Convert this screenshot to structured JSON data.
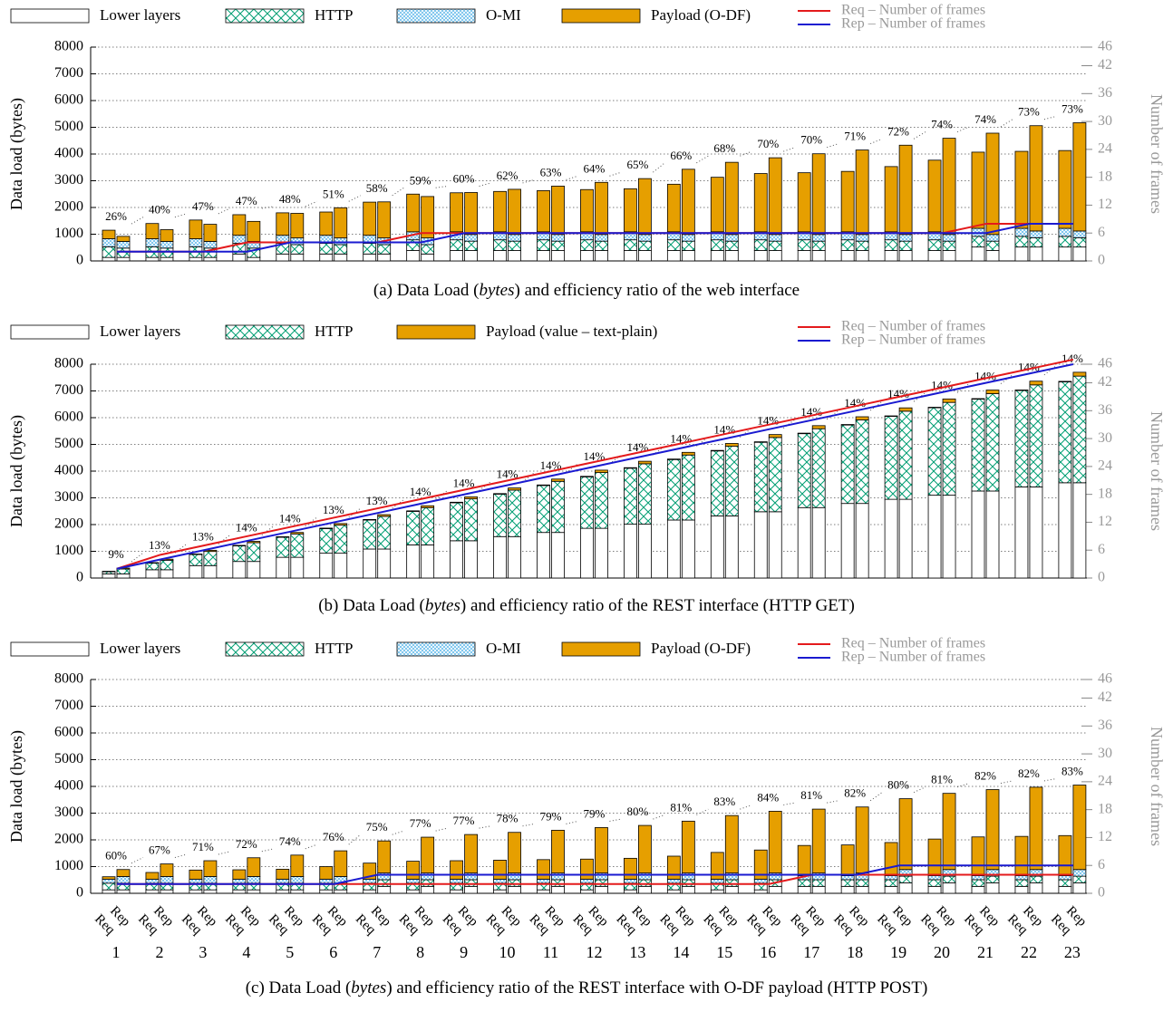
{
  "chart_data": [
    {
      "type": "bar",
      "stacked": true,
      "caption": [
        "(a) Data Load (",
        "bytes",
        ") and efficiency ratio of the web interface"
      ],
      "ylabel": "Data load (bytes)",
      "y2label": "Number of frames",
      "ylim": [
        0,
        8000
      ],
      "yticks": [
        0,
        1000,
        2000,
        3000,
        4000,
        5000,
        6000,
        7000,
        8000
      ],
      "y2lim": [
        0,
        46
      ],
      "y2ticks": [
        0,
        6,
        12,
        18,
        24,
        30,
        36,
        42,
        46
      ],
      "grid": true,
      "series": [
        {
          "name": "Lower layers",
          "color": "#ffffff",
          "pattern": "none",
          "req": [
            130,
            130,
            130,
            260,
            260,
            260,
            260,
            390,
            390,
            390,
            390,
            390,
            390,
            390,
            390,
            390,
            390,
            390,
            390,
            390,
            520,
            520,
            520
          ],
          "rep": [
            130,
            130,
            130,
            130,
            260,
            260,
            260,
            260,
            390,
            390,
            390,
            390,
            390,
            390,
            390,
            390,
            390,
            390,
            390,
            390,
            390,
            520,
            520
          ]
        },
        {
          "name": "HTTP",
          "color": "#009e73",
          "pattern": "crosshatch",
          "req": [
            400,
            400,
            400,
            400,
            400,
            400,
            400,
            400,
            400,
            400,
            400,
            400,
            400,
            400,
            400,
            400,
            400,
            400,
            400,
            400,
            400,
            400,
            400
          ],
          "rep": [
            350,
            350,
            350,
            350,
            350,
            350,
            350,
            350,
            350,
            350,
            350,
            350,
            350,
            350,
            350,
            350,
            350,
            350,
            350,
            350,
            350,
            350,
            350
          ]
        },
        {
          "name": "O-MI",
          "color": "#56b4e9",
          "pattern": "fine-crosshatch",
          "req": [
            300,
            300,
            300,
            300,
            300,
            300,
            300,
            300,
            300,
            300,
            300,
            300,
            300,
            300,
            300,
            300,
            300,
            300,
            300,
            300,
            300,
            300,
            300
          ],
          "rep": [
            250,
            250,
            250,
            250,
            250,
            250,
            250,
            250,
            250,
            250,
            250,
            250,
            250,
            250,
            250,
            250,
            250,
            250,
            250,
            250,
            250,
            250,
            250
          ]
        },
        {
          "name": "Payload (O-DF)",
          "color": "#e69f00",
          "pattern": "solid",
          "req": [
            320,
            570,
            700,
            770,
            840,
            870,
            1240,
            1410,
            1460,
            1510,
            1540,
            1580,
            1610,
            1780,
            2040,
            2180,
            2210,
            2260,
            2440,
            2680,
            2850,
            2880,
            2910
          ],
          "rep": [
            190,
            440,
            640,
            750,
            920,
            1130,
            1350,
            1550,
            1570,
            1690,
            1810,
            1950,
            2090,
            2440,
            2700,
            2870,
            3020,
            3160,
            3340,
            3600,
            3790,
            3940,
            4050
          ]
        }
      ],
      "lines": [
        {
          "name": "Req – Number of frames",
          "color": "#e41a1c",
          "axis": "y2",
          "values": [
            2,
            2,
            2,
            4,
            4,
            4,
            4,
            6,
            6,
            6,
            6,
            6,
            6,
            6,
            6,
            6,
            6,
            6,
            6,
            6,
            8,
            8,
            8
          ]
        },
        {
          "name": "Rep – Number of frames",
          "color": "#1a1ad0",
          "axis": "y2",
          "values": [
            2,
            2,
            2,
            2,
            4,
            4,
            4,
            4,
            6,
            6,
            6,
            6,
            6,
            6,
            6,
            6,
            6,
            6,
            6,
            6,
            6,
            8,
            8
          ]
        }
      ],
      "efficiency": {
        "values": [
          26,
          40,
          47,
          47,
          48,
          51,
          58,
          59,
          60,
          62,
          63,
          64,
          65,
          66,
          68,
          70,
          70,
          71,
          72,
          74,
          74,
          73,
          73
        ],
        "value_labels": [
          "26%",
          "40%",
          "47%",
          "47%",
          "48%",
          "51%",
          "58%",
          "59%",
          "60%",
          "62%",
          "63%",
          "64%",
          "65%",
          "66%",
          "68%",
          "70%",
          "70%",
          "71%",
          "72%",
          "74%",
          "74%",
          "73%",
          "73%"
        ]
      }
    },
    {
      "type": "bar",
      "stacked": true,
      "caption": [
        "(b) Data Load (",
        "bytes",
        ") and efficiency ratio of the REST interface (HTTP GET)"
      ],
      "ylabel": "Data load (bytes)",
      "y2label": "Number of frames",
      "ylim": [
        0,
        8000
      ],
      "yticks": [
        0,
        1000,
        2000,
        3000,
        4000,
        5000,
        6000,
        7000,
        8000
      ],
      "y2lim": [
        0,
        46
      ],
      "y2ticks": [
        0,
        6,
        12,
        18,
        24,
        30,
        36,
        42,
        46
      ],
      "grid": true,
      "series": [
        {
          "name": "Lower layers",
          "color": "#ffffff",
          "pattern": "none",
          "req": [
            155,
            310,
            465,
            620,
            775,
            930,
            1085,
            1240,
            1395,
            1550,
            1705,
            1860,
            2015,
            2170,
            2325,
            2480,
            2635,
            2790,
            2945,
            3100,
            3255,
            3410,
            3565
          ],
          "rep": [
            155,
            310,
            465,
            620,
            775,
            930,
            1085,
            1240,
            1395,
            1550,
            1705,
            1860,
            2015,
            2170,
            2325,
            2480,
            2635,
            2790,
            2945,
            3100,
            3255,
            3410,
            3565
          ]
        },
        {
          "name": "HTTP",
          "color": "#009e73",
          "pattern": "crosshatch",
          "req": [
            78,
            246,
            414,
            582,
            750,
            918,
            1086,
            1254,
            1422,
            1590,
            1758,
            1926,
            2094,
            2262,
            2430,
            2598,
            2766,
            2934,
            3102,
            3270,
            3438,
            3606,
            3774
          ],
          "rep": [
            183,
            356,
            529,
            702,
            875,
            1048,
            1221,
            1394,
            1567,
            1740,
            1913,
            2086,
            2259,
            2432,
            2605,
            2778,
            2951,
            3124,
            3297,
            3470,
            3643,
            3816,
            3989
          ]
        },
        {
          "name": "Payload (value – text-plain)",
          "color": "#e69f00",
          "pattern": "solid",
          "req": [
            20,
            20,
            20,
            20,
            20,
            20,
            20,
            20,
            20,
            20,
            20,
            20,
            20,
            20,
            20,
            20,
            20,
            20,
            20,
            20,
            20,
            20,
            20
          ],
          "rep": [
            35,
            40,
            45,
            50,
            55,
            60,
            65,
            70,
            75,
            80,
            85,
            90,
            95,
            100,
            105,
            110,
            115,
            120,
            125,
            130,
            135,
            140,
            145
          ]
        }
      ],
      "lines": [
        {
          "name": "Req – Number of frames",
          "color": "#e41a1c",
          "axis": "y2",
          "values": [
            2,
            5,
            7,
            9,
            11,
            13,
            15,
            17,
            19,
            21,
            23,
            25,
            27,
            29,
            31,
            33,
            35,
            37,
            39,
            41,
            43,
            45,
            47
          ]
        },
        {
          "name": "Rep – Number of frames",
          "color": "#1a1ad0",
          "axis": "y2",
          "values": [
            2,
            4,
            6,
            8,
            10,
            12,
            14,
            16,
            18,
            20,
            22,
            24,
            26,
            28,
            30,
            32,
            34,
            36,
            38,
            40,
            42,
            44,
            46
          ]
        }
      ],
      "efficiency": {
        "values": [
          9,
          13,
          13,
          14,
          14,
          13,
          13,
          14,
          14,
          14,
          14,
          14,
          14,
          14,
          14,
          14,
          14,
          14,
          14,
          14,
          14,
          14,
          14
        ],
        "value_labels": [
          "9%",
          "13%",
          "13%",
          "14%",
          "14%",
          "13%",
          "13%",
          "14%",
          "14%",
          "14%",
          "14%",
          "14%",
          "14%",
          "14%",
          "14%",
          "14%",
          "14%",
          "14%",
          "14%",
          "14%",
          "14%",
          "14%",
          "14%"
        ]
      }
    },
    {
      "type": "bar",
      "stacked": true,
      "caption": [
        "(c) Data Load (",
        "bytes",
        ") and efficiency ratio of the REST interface with O-DF payload (HTTP POST)"
      ],
      "ylabel": "Data load (bytes)",
      "y2label": "Number of frames",
      "ylim": [
        0,
        8000
      ],
      "yticks": [
        0,
        1000,
        2000,
        3000,
        4000,
        5000,
        6000,
        7000,
        8000
      ],
      "y2lim": [
        0,
        46
      ],
      "y2ticks": [
        0,
        6,
        12,
        18,
        24,
        30,
        36,
        42,
        46
      ],
      "grid": true,
      "categories": [
        "1",
        "2",
        "3",
        "4",
        "5",
        "6",
        "7",
        "8",
        "9",
        "10",
        "11",
        "12",
        "13",
        "14",
        "15",
        "16",
        "17",
        "18",
        "19",
        "20",
        "21",
        "22",
        "23"
      ],
      "bar_labels": [
        "Req",
        "Rep"
      ],
      "series": [
        {
          "name": "Lower layers",
          "color": "#ffffff",
          "pattern": "none",
          "req": [
            130,
            130,
            130,
            130,
            130,
            130,
            130,
            130,
            130,
            130,
            130,
            130,
            130,
            130,
            130,
            130,
            260,
            260,
            260,
            260,
            260,
            260,
            260
          ],
          "rep": [
            130,
            130,
            130,
            130,
            130,
            130,
            260,
            260,
            260,
            260,
            260,
            260,
            260,
            260,
            260,
            260,
            260,
            260,
            390,
            390,
            390,
            390,
            390
          ]
        },
        {
          "name": "HTTP",
          "color": "#009e73",
          "pattern": "crosshatch",
          "req": [
            250,
            250,
            250,
            250,
            250,
            250,
            250,
            250,
            250,
            250,
            250,
            250,
            250,
            250,
            250,
            250,
            250,
            250,
            250,
            250,
            250,
            250,
            250
          ],
          "rep": [
            250,
            250,
            250,
            250,
            250,
            250,
            250,
            250,
            250,
            250,
            250,
            250,
            250,
            250,
            250,
            250,
            250,
            250,
            250,
            250,
            250,
            250,
            250
          ]
        },
        {
          "name": "O-MI",
          "color": "#56b4e9",
          "pattern": "fine-crosshatch",
          "req": [
            150,
            150,
            150,
            150,
            150,
            150,
            150,
            150,
            150,
            150,
            150,
            150,
            150,
            150,
            150,
            150,
            150,
            150,
            150,
            150,
            150,
            150,
            150
          ],
          "rep": [
            250,
            250,
            250,
            250,
            250,
            250,
            250,
            250,
            250,
            250,
            250,
            250,
            250,
            250,
            250,
            250,
            250,
            250,
            250,
            250,
            250,
            250,
            250
          ]
        },
        {
          "name": "Payload (O-DF)",
          "color": "#e69f00",
          "pattern": "solid",
          "req": [
            90,
            250,
            340,
            350,
            370,
            470,
            600,
            670,
            690,
            710,
            730,
            750,
            780,
            860,
            1000,
            1090,
            1130,
            1150,
            1240,
            1370,
            1450,
            1470,
            1500
          ],
          "rep": [
            260,
            470,
            590,
            700,
            800,
            960,
            1200,
            1340,
            1440,
            1520,
            1600,
            1700,
            1780,
            1940,
            2150,
            2310,
            2390,
            2470,
            2650,
            2850,
            2990,
            3080,
            3160
          ]
        }
      ],
      "lines": [
        {
          "name": "Req – Number of frames",
          "color": "#e41a1c",
          "axis": "y2",
          "values": [
            2,
            2,
            2,
            2,
            2,
            2,
            2,
            2,
            2,
            2,
            2,
            2,
            2,
            2,
            2,
            2,
            4,
            4,
            4,
            4,
            4,
            4,
            4
          ]
        },
        {
          "name": "Rep – Number of frames",
          "color": "#1a1ad0",
          "axis": "y2",
          "values": [
            2,
            2,
            2,
            2,
            2,
            2,
            4,
            4,
            4,
            4,
            4,
            4,
            4,
            4,
            4,
            4,
            4,
            4,
            6,
            6,
            6,
            6,
            6
          ]
        }
      ],
      "efficiency": {
        "values": [
          60,
          67,
          71,
          72,
          74,
          76,
          75,
          77,
          77,
          78,
          79,
          79,
          80,
          81,
          83,
          84,
          81,
          82,
          80,
          81,
          82,
          82,
          83
        ],
        "value_labels": [
          "60%",
          "67%",
          "71%",
          "72%",
          "74%",
          "76%",
          "75%",
          "77%",
          "77%",
          "78%",
          "79%",
          "79%",
          "80%",
          "81%",
          "83%",
          "84%",
          "81%",
          "82%",
          "80%",
          "81%",
          "82%",
          "82%",
          "83%"
        ]
      }
    }
  ]
}
